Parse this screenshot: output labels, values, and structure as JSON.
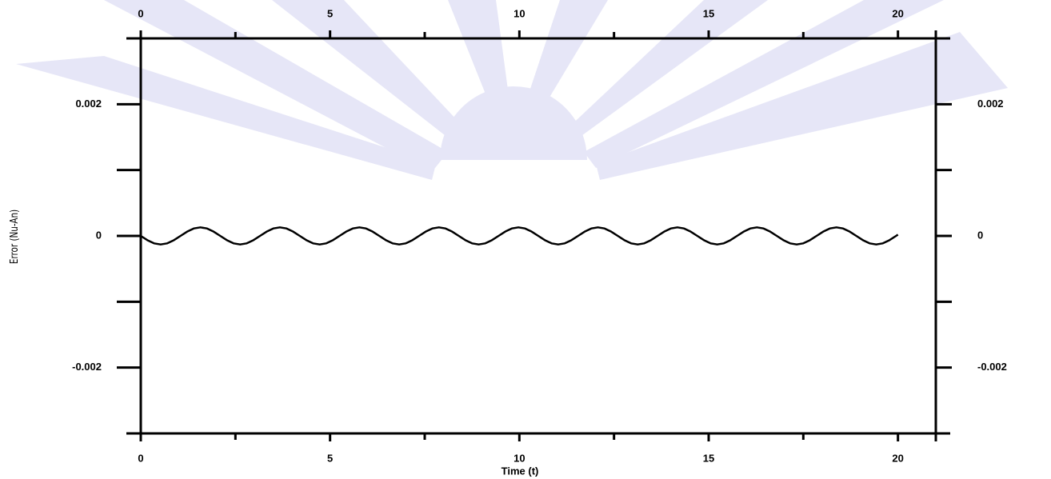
{
  "chart_data": {
    "type": "line",
    "x_label": "Time (t)",
    "y_label": "Error (Nu-An)",
    "xlim": [
      0,
      21
    ],
    "ylim": [
      -0.003,
      0.003
    ],
    "xticks": [
      0,
      5,
      10,
      15,
      20
    ],
    "yticks": [
      -0.002,
      0,
      0.002
    ],
    "xminor_ticks": [
      2.5,
      7.5,
      12.5,
      17.5
    ],
    "yminor_ticks": [
      -0.001,
      0.001
    ],
    "series": [
      {
        "color": "#000000",
        "x": [
          0,
          0.175,
          0.35,
          0.525,
          0.7,
          0.875,
          1.05,
          1.225,
          1.4,
          1.575,
          1.75,
          1.925,
          2.1,
          2.275,
          2.45,
          2.625,
          2.8,
          2.975,
          3.15,
          3.325,
          3.5,
          3.675,
          3.85,
          4.025,
          4.2,
          4.375,
          4.55,
          4.725,
          4.9,
          5.075,
          5.25,
          5.425,
          5.6,
          5.775,
          5.95,
          6.125,
          6.3,
          6.475,
          6.65,
          6.825,
          7,
          7.175,
          7.35,
          7.525,
          7.7,
          7.875,
          8.05,
          8.225,
          8.4,
          8.575,
          8.75,
          8.925,
          9.1,
          9.275,
          9.45,
          9.625,
          9.8,
          9.975,
          10.15,
          10.325,
          10.5,
          10.675,
          10.85,
          11.025,
          11.2,
          11.375,
          11.55,
          11.725,
          11.9,
          12.075,
          12.25,
          12.425,
          12.6,
          12.775,
          12.95,
          13.125,
          13.3,
          13.475,
          13.65,
          13.825,
          14,
          14.175,
          14.35,
          14.525,
          14.7,
          14.875,
          15.05,
          15.225,
          15.4,
          15.575,
          15.75,
          15.925,
          16.1,
          16.275,
          16.45,
          16.625,
          16.8,
          16.975,
          17.15,
          17.325,
          17.5,
          17.675,
          17.85,
          18.025,
          18.2,
          18.375,
          18.55,
          18.725,
          18.9,
          19.075,
          19.25,
          19.425,
          19.6,
          19.775,
          19.95,
          20
        ],
        "values": [
          0,
          -6.5e-05,
          -0.000113,
          -0.00013,
          -0.000113,
          -6.5e-05,
          0,
          6.5e-05,
          0.000113,
          0.00013,
          0.000113,
          6.5e-05,
          0,
          -6.5e-05,
          -0.000113,
          -0.00013,
          -0.000113,
          -6.5e-05,
          0,
          6.5e-05,
          0.000113,
          0.00013,
          0.000113,
          6.5e-05,
          0,
          -6.5e-05,
          -0.000113,
          -0.00013,
          -0.000113,
          -6.5e-05,
          0,
          6.5e-05,
          0.000113,
          0.00013,
          0.000113,
          6.5e-05,
          0,
          -6.5e-05,
          -0.000113,
          -0.00013,
          -0.000113,
          -6.5e-05,
          0,
          6.5e-05,
          0.000113,
          0.00013,
          0.000113,
          6.5e-05,
          0,
          -6.5e-05,
          -0.000113,
          -0.00013,
          -0.000113,
          -6.5e-05,
          0,
          6.5e-05,
          0.000113,
          0.00013,
          0.000113,
          6.5e-05,
          0,
          -6.5e-05,
          -0.000113,
          -0.00013,
          -0.000113,
          -6.5e-05,
          0,
          6.5e-05,
          0.000113,
          0.00013,
          0.000113,
          6.5e-05,
          0,
          -6.5e-05,
          -0.000113,
          -0.00013,
          -0.000113,
          -6.5e-05,
          0,
          6.5e-05,
          0.000113,
          0.00013,
          0.000113,
          6.5e-05,
          0,
          -6.5e-05,
          -0.000113,
          -0.00013,
          -0.000113,
          -6.5e-05,
          0,
          6.5e-05,
          0.000113,
          0.00013,
          0.000113,
          6.5e-05,
          0,
          -6.5e-05,
          -0.000113,
          -0.00013,
          -0.000113,
          -6.5e-05,
          0,
          6.5e-05,
          0.000113,
          0.00013,
          0.000113,
          6.5e-05,
          0,
          -6.5e-05,
          -0.000113,
          -0.00013,
          -0.000113,
          -6.5e-05,
          0,
          1.9e-05
        ]
      }
    ]
  }
}
